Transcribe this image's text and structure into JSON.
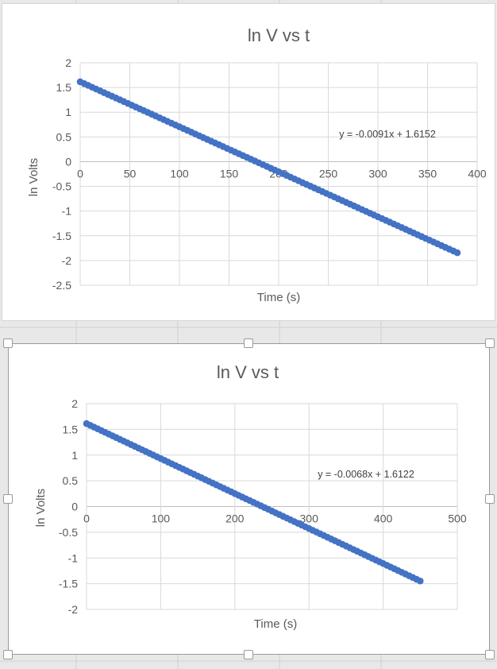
{
  "chart_data": [
    {
      "type": "scatter",
      "title": "ln V vs t",
      "xlabel": "Time (s)",
      "ylabel": "ln Volts",
      "xlim": [
        0,
        400
      ],
      "ylim": [
        -2.5,
        2
      ],
      "x_ticks": [
        0,
        50,
        100,
        150,
        200,
        250,
        300,
        350,
        400
      ],
      "x_tick_labels": [
        "0",
        "50",
        "100",
        "150",
        "200",
        "250",
        "300",
        "350",
        "400"
      ],
      "y_ticks": [
        2,
        1.5,
        1,
        0.5,
        0,
        -0.5,
        -1,
        -1.5,
        -2,
        -2.5
      ],
      "y_tick_labels": [
        "2",
        "1.5",
        "1",
        "0.5",
        "0",
        "-0.5",
        "-1",
        "-1.5",
        "-2",
        "-2.5"
      ],
      "grid": true,
      "trendline_label": "y = -0.0091x + 1.6152",
      "series": [
        {
          "slope": -0.0091,
          "intercept": 1.6152,
          "x_start": 0,
          "x_end": 380,
          "x_step": 4,
          "color": "#4472C4"
        }
      ]
    },
    {
      "type": "scatter",
      "title": "ln V vs t",
      "xlabel": "Time (s)",
      "ylabel": "ln Volts",
      "xlim": [
        0,
        500
      ],
      "ylim": [
        -2,
        2
      ],
      "x_ticks": [
        0,
        100,
        200,
        300,
        400,
        500
      ],
      "x_tick_labels": [
        "0",
        "100",
        "200",
        "300",
        "400",
        "500"
      ],
      "y_ticks": [
        2,
        1.5,
        1,
        0.5,
        0,
        -0.5,
        -1,
        -1.5,
        -2
      ],
      "y_tick_labels": [
        "2",
        "1.5",
        "1",
        "0.5",
        "0",
        "-0.5",
        "-1",
        "-1.5",
        "-2"
      ],
      "grid": true,
      "trendline_label": "y = -0.0068x + 1.6122",
      "series": [
        {
          "slope": -0.0068,
          "intercept": 1.6122,
          "x_start": 0,
          "x_end": 450,
          "x_step": 5,
          "color": "#4472C4"
        }
      ]
    }
  ]
}
